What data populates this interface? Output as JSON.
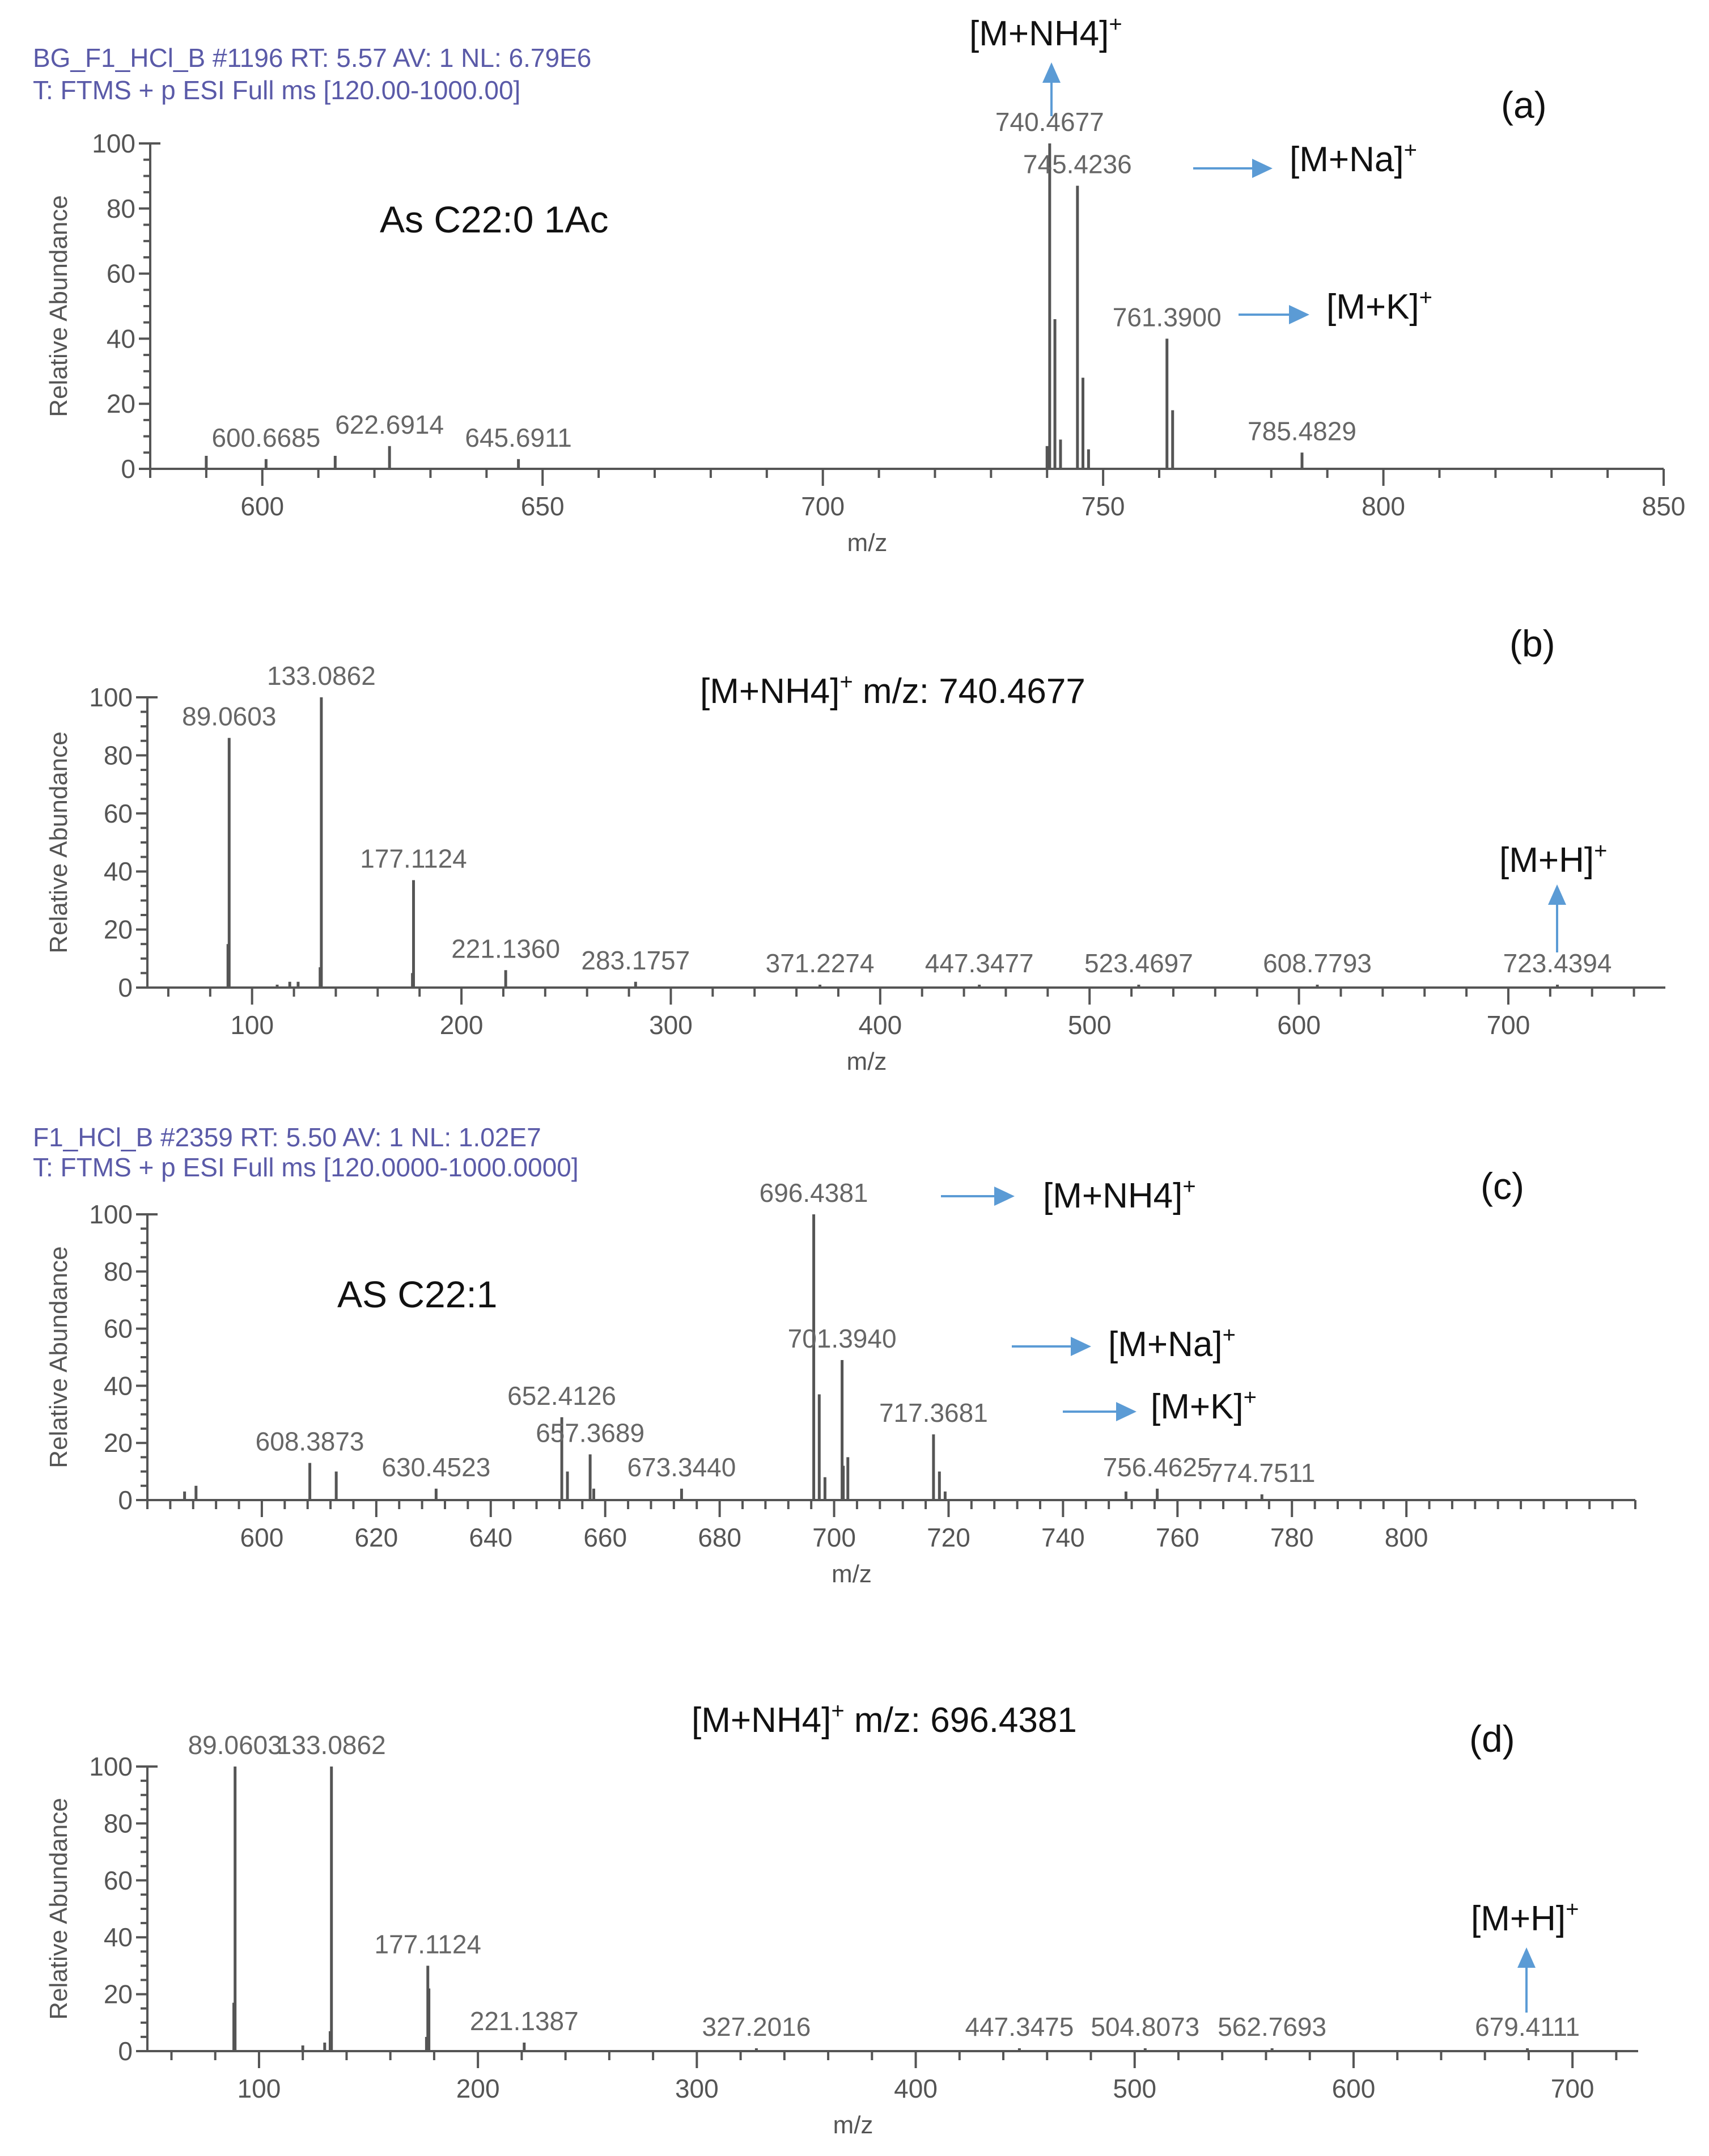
{
  "colors": {
    "header_text": "#5a5aa8",
    "arrow": "#5b9bd5",
    "peak": "#555555",
    "axis": "#555555",
    "annotation_text": "#111111",
    "leader_line": "#7fcf7f"
  },
  "chart_data": [
    {
      "id": "a",
      "type": "bar",
      "panel_label": "(a)",
      "header_line1": "BG_F1_HCl_B #1196  RT: 5.57  AV: 1  NL: 6.79E6",
      "header_line2": "T: FTMS + p ESI Full ms [120.00-1000.00]",
      "compound_label": "As C22:0 1Ac",
      "xlabel": "m/z",
      "ylabel": "Relative Abundance",
      "xlim": [
        580,
        850
      ],
      "ylim": [
        0,
        100
      ],
      "xticks": [
        600,
        650,
        700,
        750,
        800,
        850
      ],
      "yticks": [
        0,
        20,
        40,
        60,
        80,
        100
      ],
      "frame": {
        "x0": 265,
        "x1": 2935,
        "y_top": 253,
        "y_base": 827
      },
      "peaks": [
        {
          "mz": 590.0,
          "y": 4
        },
        {
          "mz": 600.6685,
          "y": 3,
          "label": "600.6685"
        },
        {
          "mz": 613.0,
          "y": 4
        },
        {
          "mz": 622.6914,
          "y": 7,
          "label": "622.6914"
        },
        {
          "mz": 645.6911,
          "y": 3,
          "label": "645.6911"
        },
        {
          "mz": 740.0,
          "y": 7
        },
        {
          "mz": 740.4677,
          "y": 100,
          "label": "740.4677"
        },
        {
          "mz": 741.4,
          "y": 46
        },
        {
          "mz": 742.4,
          "y": 9
        },
        {
          "mz": 745.4236,
          "y": 87,
          "label": "745.4236"
        },
        {
          "mz": 746.4,
          "y": 28
        },
        {
          "mz": 747.4,
          "y": 6
        },
        {
          "mz": 761.39,
          "y": 40,
          "label": "761.3900"
        },
        {
          "mz": 762.4,
          "y": 18
        },
        {
          "mz": 785.4829,
          "y": 5,
          "label": "785.4829"
        }
      ],
      "annotations": [
        {
          "text": "[M+NH4]",
          "sup": "+",
          "target_mz": 740.4677,
          "direction": "up"
        },
        {
          "text": "[M+Na]",
          "sup": "+",
          "target_mz": 745.4236,
          "direction": "right"
        },
        {
          "text": "[M+K]",
          "sup": "+",
          "target_mz": 761.39,
          "direction": "right"
        }
      ]
    },
    {
      "id": "b",
      "type": "bar",
      "panel_label": "(b)",
      "precursor_label": "[M+NH4]",
      "precursor_sup": "+",
      "precursor_value": " m/z: 740.4677",
      "xlabel": "m/z",
      "ylabel": "Relative Abundance",
      "xlim": [
        50,
        775
      ],
      "ylim": [
        0,
        100
      ],
      "xticks": [
        100,
        200,
        300,
        400,
        500,
        600,
        700
      ],
      "yticks": [
        0,
        20,
        40,
        60,
        80,
        100
      ],
      "frame": {
        "x0": 260,
        "x1": 2938,
        "y_top": 1230,
        "y_base": 1742
      },
      "peaks": [
        {
          "mz": 89.0603,
          "y": 86,
          "label": "89.0603"
        },
        {
          "mz": 88.5,
          "y": 15
        },
        {
          "mz": 112,
          "y": 1
        },
        {
          "mz": 118,
          "y": 2
        },
        {
          "mz": 122,
          "y": 2
        },
        {
          "mz": 133.0862,
          "y": 100,
          "label": "133.0862"
        },
        {
          "mz": 132.5,
          "y": 7
        },
        {
          "mz": 177.1124,
          "y": 37,
          "label": "177.1124"
        },
        {
          "mz": 176.6,
          "y": 5
        },
        {
          "mz": 221.136,
          "y": 6,
          "label": "221.1360"
        },
        {
          "mz": 283.1757,
          "y": 2,
          "label": "283.1757"
        },
        {
          "mz": 371.2274,
          "y": 1,
          "label": "371.2274"
        },
        {
          "mz": 447.3477,
          "y": 1,
          "label": "447.3477"
        },
        {
          "mz": 523.4697,
          "y": 1,
          "label": "523.4697"
        },
        {
          "mz": 608.7793,
          "y": 1,
          "label": "608.7793"
        },
        {
          "mz": 723.4394,
          "y": 1,
          "label": "723.4394"
        }
      ],
      "annotations": [
        {
          "text": "[M+H]",
          "sup": "+",
          "target_mz": 723.4394,
          "direction": "up"
        }
      ]
    },
    {
      "id": "c",
      "type": "bar",
      "panel_label": "(c)",
      "header_line1": "F1_HCl_B #2359  RT: 5.50  AV: 1  NL: 1.02E7",
      "header_line2": "T: FTMS + p ESI Full ms [120.0000-1000.0000]",
      "compound_label": "AS C22:1",
      "xlabel": "m/z",
      "ylabel": "Relative Abundance",
      "xlim": [
        580,
        840
      ],
      "ylim": [
        0,
        100
      ],
      "xticks": [
        600,
        620,
        640,
        660,
        680,
        700,
        720,
        740,
        760,
        780,
        800
      ],
      "yticks": [
        0,
        20,
        40,
        60,
        80,
        100
      ],
      "frame": {
        "x0": 260,
        "x1": 2885,
        "y_top": 2142,
        "y_base": 2646
      },
      "peaks": [
        {
          "mz": 586.5,
          "y": 3
        },
        {
          "mz": 588.5,
          "y": 5
        },
        {
          "mz": 608.3873,
          "y": 13,
          "label": "608.3873"
        },
        {
          "mz": 613.0,
          "y": 10
        },
        {
          "mz": 630.4523,
          "y": 4,
          "label": "630.4523"
        },
        {
          "mz": 652.4126,
          "y": 29,
          "label": "652.4126"
        },
        {
          "mz": 653.4,
          "y": 10
        },
        {
          "mz": 657.3689,
          "y": 16,
          "label": "657.3689"
        },
        {
          "mz": 658.0,
          "y": 4
        },
        {
          "mz": 673.344,
          "y": 4,
          "label": "673.3440"
        },
        {
          "mz": 696.4381,
          "y": 100,
          "label": "696.4381"
        },
        {
          "mz": 697.4,
          "y": 37
        },
        {
          "mz": 698.4,
          "y": 8
        },
        {
          "mz": 701.394,
          "y": 49,
          "label": "701.3940"
        },
        {
          "mz": 701.6,
          "y": 12
        },
        {
          "mz": 702.4,
          "y": 15
        },
        {
          "mz": 717.3681,
          "y": 23,
          "label": "717.3681"
        },
        {
          "mz": 718.4,
          "y": 10
        },
        {
          "mz": 719.4,
          "y": 3
        },
        {
          "mz": 751.0,
          "y": 3
        },
        {
          "mz": 756.4625,
          "y": 4,
          "label": "756.4625"
        },
        {
          "mz": 774.7511,
          "y": 2,
          "label": "774.7511"
        }
      ],
      "annotations": [
        {
          "text": "[M+NH4]",
          "sup": "+",
          "target_mz": 696.4381,
          "direction": "right"
        },
        {
          "text": "[M+Na]",
          "sup": "+",
          "target_mz": 701.394,
          "direction": "right"
        },
        {
          "text": "[M+K]",
          "sup": "+",
          "target_mz": 717.3681,
          "direction": "right"
        }
      ]
    },
    {
      "id": "d",
      "type": "bar",
      "panel_label": "(d)",
      "precursor_label": "[M+NH4]",
      "precursor_sup": "+",
      "precursor_value": " m/z: 696.4381",
      "xlabel": "m/z",
      "ylabel": "Relative Abundance",
      "xlim": [
        49,
        730
      ],
      "ylim": [
        0,
        100
      ],
      "xticks": [
        100,
        200,
        300,
        400,
        500,
        600,
        700
      ],
      "yticks": [
        0,
        20,
        40,
        60,
        80,
        100
      ],
      "frame": {
        "x0": 260,
        "x1": 2890,
        "y_top": 3116,
        "y_base": 3618
      },
      "peaks": [
        {
          "mz": 89.0603,
          "y": 100,
          "label": "89.0603"
        },
        {
          "mz": 88.5,
          "y": 17
        },
        {
          "mz": 120,
          "y": 2
        },
        {
          "mz": 130,
          "y": 3
        },
        {
          "mz": 133.0862,
          "y": 100,
          "label": "133.0862"
        },
        {
          "mz": 132.5,
          "y": 7
        },
        {
          "mz": 177.1124,
          "y": 30,
          "label": "177.1124"
        },
        {
          "mz": 177.6,
          "y": 22
        },
        {
          "mz": 176.5,
          "y": 5
        },
        {
          "mz": 221.1387,
          "y": 3,
          "label": "221.1387"
        },
        {
          "mz": 327.2016,
          "y": 1,
          "label": "327.2016"
        },
        {
          "mz": 447.3475,
          "y": 1,
          "label": "447.3475"
        },
        {
          "mz": 504.8073,
          "y": 1,
          "label": "504.8073"
        },
        {
          "mz": 562.7693,
          "y": 1,
          "label": "562.7693"
        },
        {
          "mz": 679.4111,
          "y": 1,
          "label": "679.4111"
        }
      ],
      "annotations": [
        {
          "text": "[M+H]",
          "sup": "+",
          "target_mz": 679.4111,
          "direction": "up"
        }
      ]
    }
  ]
}
